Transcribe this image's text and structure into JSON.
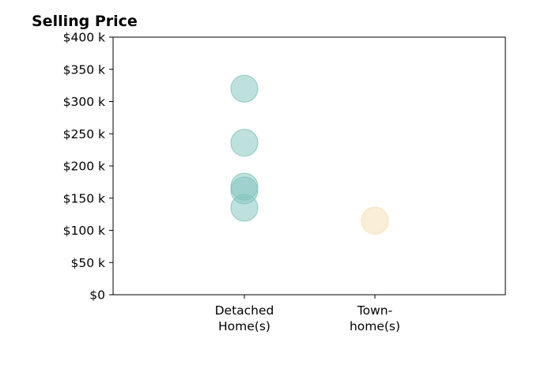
{
  "chart_data": {
    "type": "scatter",
    "title": "Selling Price",
    "xlabel": "",
    "ylabel": "",
    "categories": [
      [
        "Detached",
        "Home(s)"
      ],
      [
        "Town-",
        "home(s)"
      ]
    ],
    "series": [
      {
        "category_index": 0,
        "color": "#7fc4bd",
        "values": [
          320000,
          236000,
          168000,
          162000,
          135000
        ]
      },
      {
        "category_index": 1,
        "color": "#f5deb0",
        "values": [
          115000
        ]
      }
    ],
    "ylim": [
      0,
      400000
    ],
    "yticks": [
      0,
      50000,
      100000,
      150000,
      200000,
      250000,
      300000,
      350000,
      400000
    ],
    "ytick_labels": [
      "$0",
      "$50 k",
      "$100 k",
      "$150 k",
      "$200 k",
      "$250 k",
      "$300 k",
      "$350 k",
      "$400 k"
    ],
    "grid": false,
    "legend": "none"
  }
}
